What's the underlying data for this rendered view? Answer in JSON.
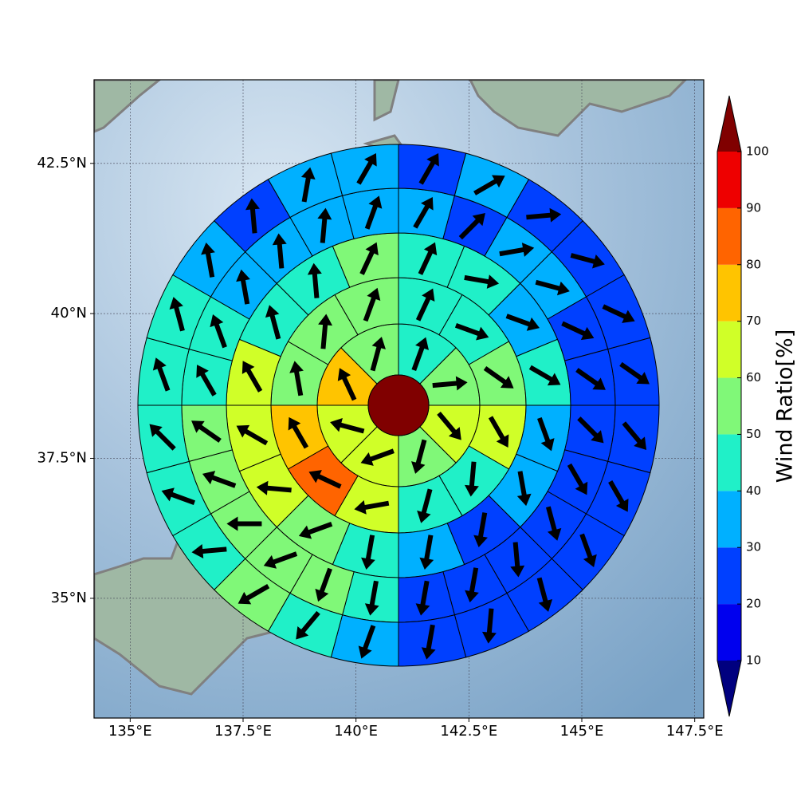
{
  "chart_data": {
    "type": "polar",
    "xlim": [
      134.2,
      147.7
    ],
    "ylim": [
      32.8,
      43.85
    ],
    "xticks": [
      {
        "value": 135,
        "label": "135°E"
      },
      {
        "value": 137.5,
        "label": "137.5°E"
      },
      {
        "value": 140,
        "label": "140°E"
      },
      {
        "value": 142.5,
        "label": "142.5°E"
      },
      {
        "value": 145,
        "label": "145°E"
      },
      {
        "value": 147.5,
        "label": "147.5°E"
      }
    ],
    "yticks": [
      {
        "value": 35,
        "label": "35°N"
      },
      {
        "value": 37.5,
        "label": "37.5°N"
      },
      {
        "value": 40,
        "label": "40°N"
      },
      {
        "value": 42.5,
        "label": "42.5°N"
      }
    ],
    "grid": true,
    "center_value": 110,
    "rings": [
      {
        "values": [
          45,
          55,
          65,
          55,
          65,
          65,
          75,
          55
        ],
        "directions": [
          20,
          85,
          140,
          195,
          250,
          285,
          335,
          15
        ]
      },
      {
        "values": [
          45,
          45,
          55,
          65,
          45,
          45,
          65,
          85,
          75,
          55,
          55,
          55
        ],
        "directions": [
          25,
          110,
          125,
          150,
          185,
          195,
          260,
          295,
          330,
          350,
          5,
          20
        ]
      },
      {
        "values": [
          45,
          45,
          35,
          45,
          35,
          35,
          25,
          35,
          45,
          55,
          65,
          65,
          65,
          45,
          45,
          55
        ],
        "directions": [
          25,
          100,
          110,
          120,
          160,
          170,
          190,
          190,
          190,
          250,
          275,
          300,
          330,
          345,
          355,
          25
        ]
      },
      {
        "values": [
          35,
          25,
          35,
          35,
          25,
          25,
          25,
          25,
          25,
          25,
          25,
          25,
          45,
          55,
          55,
          55,
          55,
          55,
          45,
          45,
          35,
          35,
          35,
          35
        ],
        "directions": [
          30,
          45,
          80,
          105,
          115,
          125,
          135,
          150,
          165,
          175,
          190,
          190,
          190,
          200,
          250,
          270,
          290,
          305,
          330,
          340,
          350,
          355,
          5,
          20
        ]
      },
      {
        "values": [
          25,
          35,
          25,
          25,
          25,
          25,
          25,
          25,
          25,
          25,
          25,
          25,
          35,
          45,
          55,
          45,
          45,
          45,
          45,
          45,
          35,
          25,
          35,
          35
        ],
        "directions": [
          30,
          60,
          85,
          105,
          115,
          125,
          140,
          150,
          160,
          165,
          185,
          190,
          200,
          220,
          240,
          265,
          290,
          315,
          340,
          345,
          350,
          355,
          10,
          30
        ]
      }
    ],
    "colorbar": {
      "label": "Wind Ratio[%]",
      "ticks": [
        10,
        20,
        30,
        40,
        50,
        60,
        70,
        80,
        90,
        100
      ],
      "colors": [
        "#00007f",
        "#0000ee",
        "#0040ff",
        "#00b0ff",
        "#20f0c8",
        "#80f878",
        "#d0ff28",
        "#ffc400",
        "#ff6400",
        "#ee0000",
        "#800000"
      ]
    }
  }
}
